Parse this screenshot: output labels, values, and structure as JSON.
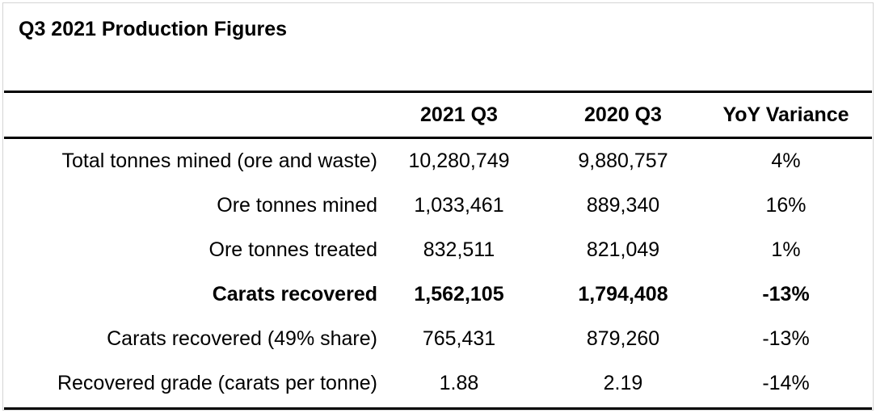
{
  "title": "Q3 2021 Production Figures",
  "table": {
    "headers": [
      "",
      "2021 Q3",
      "2020 Q3",
      "YoY Variance"
    ],
    "rows": [
      [
        "Total tonnes mined (ore and waste)",
        "10,280,749",
        "9,880,757",
        "4%"
      ],
      [
        "Ore tonnes mined",
        "1,033,461",
        "889,340",
        "16%"
      ],
      [
        "Ore tonnes treated",
        "832,511",
        "821,049",
        "1%"
      ],
      [
        "Carats recovered",
        "1,562,105",
        "1,794,408",
        "-13%"
      ],
      [
        "Carats recovered (49% share)",
        "765,431",
        "879,260",
        "-13%"
      ],
      [
        "Recovered grade (carats per tonne)",
        "1.88",
        "2.19",
        "-14%"
      ]
    ],
    "bold_row_index": 3
  }
}
